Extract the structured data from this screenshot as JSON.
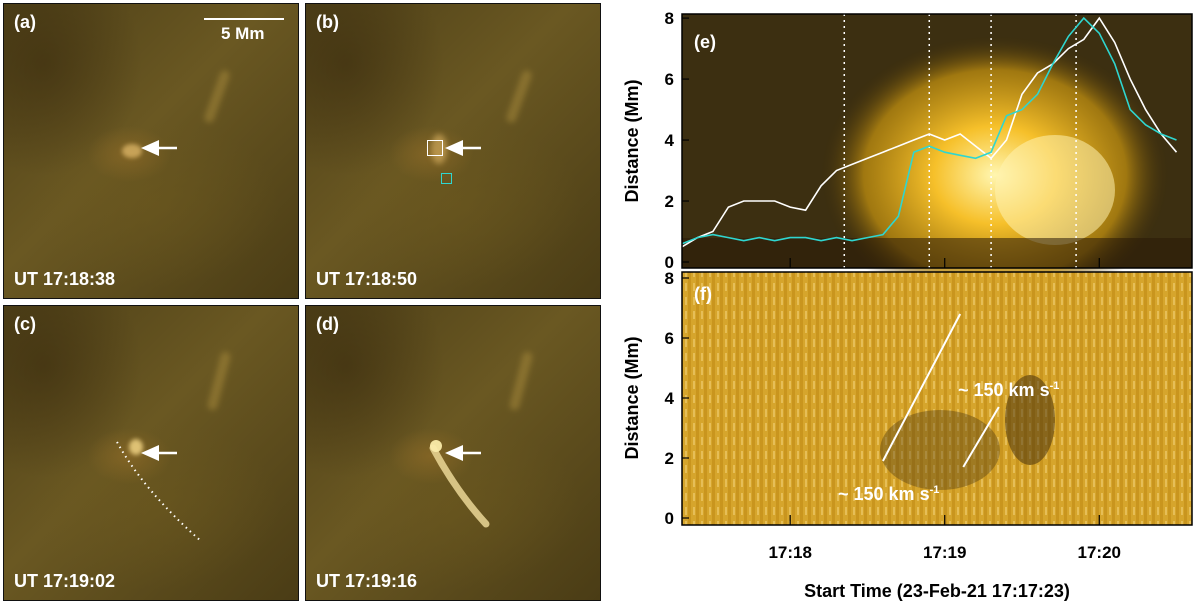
{
  "panels": [
    {
      "label": "(a)",
      "time": "UT 17:18:38"
    },
    {
      "label": "(b)",
      "time": "UT 17:18:50"
    },
    {
      "label": "(c)",
      "time": "UT 17:19:02"
    },
    {
      "label": "(d)",
      "time": "UT 17:19:16"
    }
  ],
  "scale_label": "5 Mm",
  "colors": {
    "white_curve": "#ffffff",
    "cyan_curve": "#2fd6d0"
  },
  "chart_data": [
    {
      "type": "line",
      "panel": "(e)",
      "ylabel": "Distance (Mm)",
      "ylim": [
        0,
        8.2
      ],
      "yticks": [
        "0",
        "2",
        "4",
        "6",
        "8"
      ],
      "vlines_dotted": [
        18.35,
        18.9,
        19.3,
        19.85
      ],
      "series": [
        {
          "color": "#ffffff",
          "x": [
            17.3,
            17.4,
            17.5,
            17.6,
            17.7,
            17.8,
            17.9,
            18.0,
            18.1,
            18.2,
            18.3,
            18.4,
            18.5,
            18.6,
            18.7,
            18.8,
            18.9,
            19.0,
            19.1,
            19.2,
            19.3,
            19.4,
            19.5,
            19.6,
            19.7,
            19.8,
            19.9,
            20.0,
            20.1,
            20.2,
            20.3,
            20.4,
            20.5
          ],
          "y": [
            0.5,
            0.8,
            1.0,
            1.8,
            2.0,
            2.0,
            2.0,
            1.8,
            1.7,
            2.5,
            3.0,
            3.2,
            3.4,
            3.6,
            3.8,
            4.0,
            4.2,
            4.0,
            4.2,
            3.8,
            3.4,
            4.0,
            5.5,
            6.2,
            6.5,
            7.0,
            7.3,
            8.0,
            7.2,
            6.0,
            5.0,
            4.2,
            3.6
          ]
        },
        {
          "color": "#2fd6d0",
          "x": [
            17.3,
            17.4,
            17.5,
            17.6,
            17.7,
            17.8,
            17.9,
            18.0,
            18.1,
            18.2,
            18.3,
            18.4,
            18.5,
            18.6,
            18.7,
            18.8,
            18.9,
            19.0,
            19.1,
            19.2,
            19.3,
            19.4,
            19.5,
            19.6,
            19.7,
            19.8,
            19.9,
            20.0,
            20.1,
            20.2,
            20.3,
            20.4,
            20.5
          ],
          "y": [
            0.6,
            0.8,
            0.9,
            0.8,
            0.7,
            0.8,
            0.7,
            0.8,
            0.8,
            0.7,
            0.8,
            0.7,
            0.8,
            0.9,
            1.5,
            3.6,
            3.8,
            3.6,
            3.5,
            3.4,
            3.6,
            4.8,
            5.0,
            5.5,
            6.5,
            7.4,
            8.0,
            7.5,
            6.5,
            5.0,
            4.5,
            4.2,
            4.0
          ]
        }
      ]
    },
    {
      "type": "line",
      "panel": "(f)",
      "ylabel": "Distance (Mm)",
      "xlabel": "Start Time (23-Feb-21 17:17:23)",
      "ylim": [
        0,
        8.2
      ],
      "yticks": [
        "0",
        "2",
        "4",
        "6",
        "8"
      ],
      "xticks": [
        "17:18",
        "17:19",
        "17:20"
      ],
      "fit_lines": [
        {
          "x": [
            18.6,
            19.1
          ],
          "y": [
            1.9,
            6.8
          ]
        },
        {
          "x": [
            19.12,
            19.35
          ],
          "y": [
            1.7,
            3.7
          ]
        }
      ],
      "annotations": [
        "~ 150 km s",
        "~ 150 km s"
      ],
      "unit_superscript": "-1"
    }
  ]
}
